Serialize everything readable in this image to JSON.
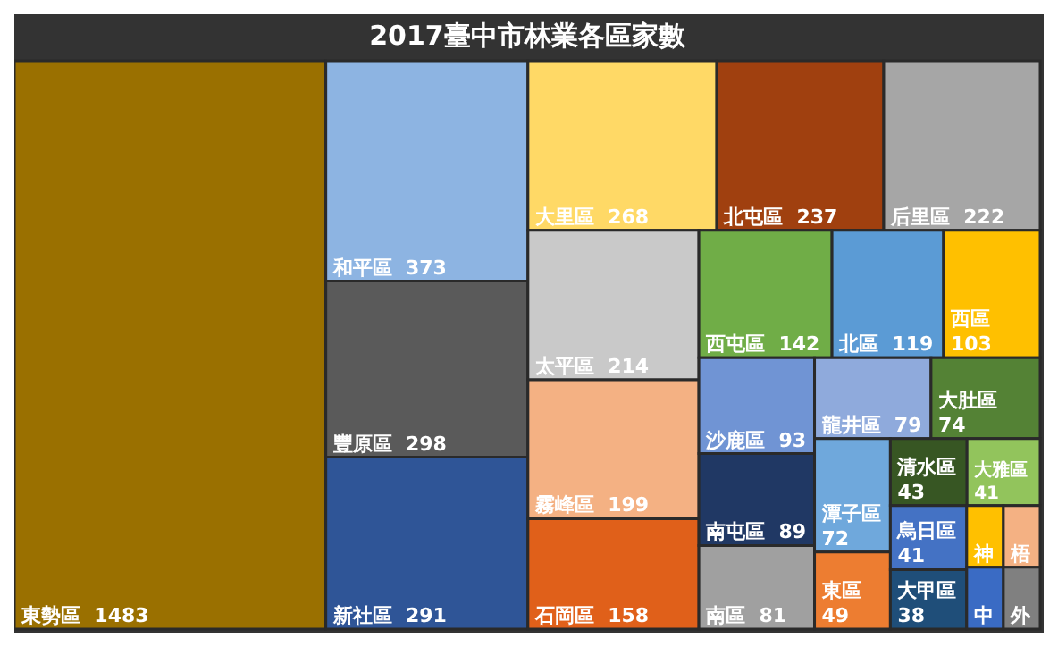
{
  "chart_data": {
    "type": "other",
    "title": "2017臺中市林業各區家數",
    "categories": [
      "東勢區",
      "和平區",
      "豐原區",
      "新社區",
      "大里區",
      "北屯區",
      "后里區",
      "太平區",
      "霧峰區",
      "石岡區",
      "西屯區",
      "北區",
      "西區",
      "沙鹿區",
      "南屯區",
      "南區",
      "龍井區",
      "大肚區",
      "潭子區",
      "東區",
      "清水區",
      "大雅區",
      "烏日區",
      "大甲區",
      "神",
      "梧",
      "中",
      "外"
    ],
    "values": [
      1483,
      373,
      298,
      291,
      268,
      237,
      222,
      214,
      199,
      158,
      142,
      119,
      103,
      93,
      89,
      81,
      79,
      74,
      72,
      49,
      43,
      41,
      41,
      38,
      null,
      null,
      null,
      null
    ],
    "value_labels": [
      "1483",
      "373",
      "298",
      "291",
      "268",
      "237",
      "222",
      "214",
      "199",
      "158",
      "142",
      "119",
      "103",
      "93",
      "89",
      "81",
      "79",
      "74",
      "72",
      "49",
      "43",
      "41",
      "41",
      "38",
      null,
      null,
      null,
      null
    ],
    "colors": [
      "#9a7000",
      "#8db4e2",
      "#5a5a5a",
      "#2f5597",
      "#ffd966",
      "#a0400f",
      "#a6a6a6",
      "#c9c9c9",
      "#f4b183",
      "#e0601a",
      "#70ad47",
      "#5b9bd5",
      "#ffc000",
      "#7094d4",
      "#203864",
      "#a0a0a0",
      "#8faadc",
      "#548235",
      "#6fa8dc",
      "#ed7d31",
      "#375623",
      "#92c45c",
      "#4472c4",
      "#1f4e79",
      "#ffc000",
      "#f4b183",
      "#3a6bc4",
      "#808080"
    ]
  }
}
